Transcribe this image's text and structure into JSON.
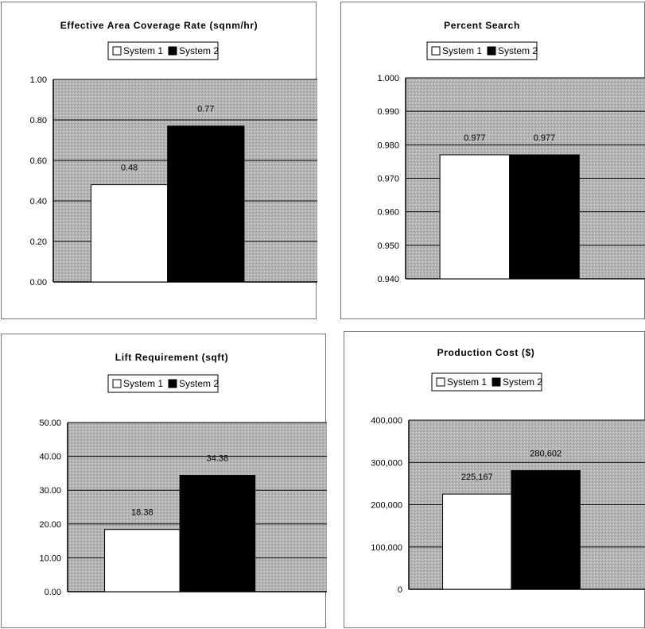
{
  "colors": {
    "system1": "#ffffff",
    "system2": "#000000",
    "plot_bg": "#b0b0b0",
    "grid": "#000000"
  },
  "chart_data": [
    {
      "type": "bar",
      "title": "Effective Area Coverage Rate (sqnm/hr)",
      "categories": [
        ""
      ],
      "series": [
        {
          "name": "System 1",
          "values": [
            0.48
          ]
        },
        {
          "name": "System 2",
          "values": [
            0.77
          ]
        }
      ],
      "data_labels": [
        "0.48",
        "0.77"
      ],
      "ylim": [
        0.0,
        1.0
      ],
      "yticks": [
        "0.00",
        "0.20",
        "0.40",
        "0.60",
        "0.80",
        "1.00"
      ],
      "legend": "top",
      "grid": true
    },
    {
      "type": "bar",
      "title": "Percent Search",
      "categories": [
        ""
      ],
      "series": [
        {
          "name": "System 1",
          "values": [
            0.977
          ]
        },
        {
          "name": "System 2",
          "values": [
            0.977
          ]
        }
      ],
      "data_labels": [
        "0.977",
        "0.977"
      ],
      "ylim": [
        0.94,
        1.0
      ],
      "yticks": [
        "0.940",
        "0.950",
        "0.960",
        "0.970",
        "0.980",
        "0.990",
        "1.000"
      ],
      "legend": "top",
      "grid": true
    },
    {
      "type": "bar",
      "title": "Lift Requirement (sqft)",
      "categories": [
        ""
      ],
      "series": [
        {
          "name": "System 1",
          "values": [
            18.38
          ]
        },
        {
          "name": "System 2",
          "values": [
            34.38
          ]
        }
      ],
      "data_labels": [
        "18.38",
        "34.38"
      ],
      "ylim": [
        0,
        50
      ],
      "yticks": [
        "0.00",
        "10.00",
        "20.00",
        "30.00",
        "40.00",
        "50.00"
      ],
      "legend": "top",
      "grid": true
    },
    {
      "type": "bar",
      "title": "Production Cost ($)",
      "categories": [
        ""
      ],
      "series": [
        {
          "name": "System 1",
          "values": [
            225167
          ]
        },
        {
          "name": "System 2",
          "values": [
            280602
          ]
        }
      ],
      "data_labels": [
        "225,167",
        "280,602"
      ],
      "ylim": [
        0,
        400000
      ],
      "yticks": [
        "0",
        "100,000",
        "200,000",
        "300,000",
        "400,000"
      ],
      "legend": "top",
      "grid": true
    }
  ]
}
